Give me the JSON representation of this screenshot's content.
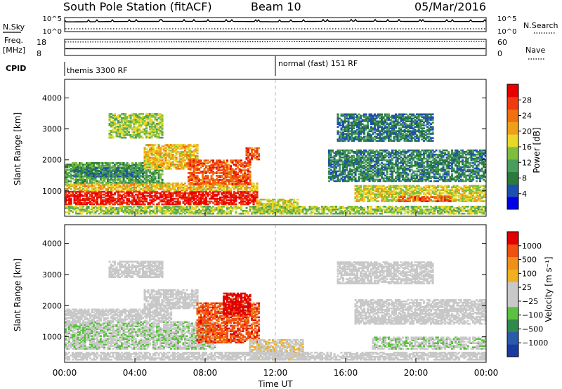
{
  "header": {
    "station": "South Pole Station (fitACF)",
    "beam": "Beam 10",
    "date": "05/Mar/2016"
  },
  "nsky_panel": {
    "left_label": "N.Sky",
    "right_label": "N.Search",
    "ticks_left": [
      "10^5",
      "10^0"
    ],
    "ticks_right": [
      "10^5",
      "10^0"
    ]
  },
  "freq_panel": {
    "left_label_1": "Freq.",
    "left_label_2": "[MHz]",
    "right_label": "Nave",
    "ticks_left": [
      "18",
      "8"
    ],
    "ticks_right": [
      "60",
      "0"
    ]
  },
  "cpid_panel": {
    "label": "CPID",
    "mode1": "themis 3300 RF",
    "mode2": "normal (fast) 151 RF",
    "mode_change_hour": 12
  },
  "power_panel": {
    "ylabel": "Slant Range [km]",
    "yticks": [
      "4000",
      "3000",
      "2000",
      "1000"
    ],
    "colorbar_label": "Power [dB]",
    "colorbar_ticks": [
      "28",
      "24",
      "20",
      "16",
      "12",
      "8",
      "4"
    ],
    "colorbar_colors": [
      "#0000e8",
      "#1e4fb0",
      "#2a7a3c",
      "#4a9e5c",
      "#7cbf3c",
      "#e8d82a",
      "#f0a018",
      "#f07010",
      "#f03a10",
      "#e80000"
    ]
  },
  "velocity_panel": {
    "ylabel": "Slant Range [km]",
    "yticks": [
      "4000",
      "3000",
      "2000",
      "1000"
    ],
    "colorbar_label": "Velocity [m s⁻¹]",
    "colorbar_ticks": [
      "1000",
      "500",
      "100",
      "25",
      "−25",
      "−100",
      "−500",
      "−1000"
    ],
    "colorbar_colors": [
      "#1a3aa0",
      "#2a5aa8",
      "#2e8a4a",
      "#5cc040",
      "#c8c8c8",
      "#c8c8c8",
      "#f0b020",
      "#f09018",
      "#f05010",
      "#e00000"
    ]
  },
  "x_axis": {
    "label": "Time UT",
    "ticks": [
      "00:00",
      "04:00",
      "08:00",
      "12:00",
      "16:00",
      "20:00",
      "00:00"
    ]
  },
  "chart_data": [
    {
      "type": "line",
      "title": "N.Sky / N.Search",
      "x": [
        0,
        4,
        8,
        12,
        16,
        20,
        24
      ],
      "series": [
        {
          "name": "N.Sky",
          "values": [
            5000.0,
            8000.0,
            9000.0,
            6000.0,
            10000.0,
            8000.0,
            7000.0
          ]
        },
        {
          "name": "N.Search",
          "values": [
            1.5,
            1.5,
            1.5,
            1.5,
            1.5,
            1.5,
            1.5
          ]
        }
      ],
      "ylim_log10": [
        0,
        5
      ]
    },
    {
      "type": "line",
      "title": "Freq / Nave",
      "x": [
        0,
        12,
        24
      ],
      "series": [
        {
          "name": "Freq",
          "values": [
            12.2,
            12.2,
            12.2
          ]
        },
        {
          "name": "Nave",
          "values": [
            50,
            52,
            52
          ]
        }
      ],
      "ylim": [
        8,
        18
      ]
    },
    {
      "type": "heatmap",
      "title": "Power",
      "xlim": [
        0,
        24
      ],
      "ylim": [
        180,
        4600
      ],
      "zlim": [
        0,
        30
      ],
      "unit": "dB",
      "regions": [
        {
          "t0": 0.0,
          "t1": 10.9,
          "r0": 550,
          "r1": 1000,
          "v": 28
        },
        {
          "t0": 0.0,
          "t1": 10.9,
          "r0": 1000,
          "r1": 1250,
          "v": 18
        },
        {
          "t0": 0.0,
          "t1": 5.5,
          "r0": 1250,
          "r1": 1900,
          "v": 11
        },
        {
          "t0": 0.5,
          "t1": 4.5,
          "r0": 1450,
          "r1": 1750,
          "v": 8
        },
        {
          "t0": 4.5,
          "t1": 7.5,
          "r0": 1700,
          "r1": 2500,
          "v": 18
        },
        {
          "t0": 7.0,
          "t1": 10.5,
          "r0": 1200,
          "r1": 2000,
          "v": 24
        },
        {
          "t0": 2.5,
          "t1": 5.5,
          "r0": 2700,
          "r1": 3500,
          "v": 14
        },
        {
          "t0": 10.3,
          "t1": 11.0,
          "r0": 2000,
          "r1": 2400,
          "v": 24
        },
        {
          "t0": 10.9,
          "t1": 13.2,
          "r0": 300,
          "r1": 750,
          "v": 16
        },
        {
          "t0": 15.0,
          "t1": 24.0,
          "r0": 1300,
          "r1": 2300,
          "v": 8
        },
        {
          "t0": 16.5,
          "t1": 24.0,
          "r0": 650,
          "r1": 1150,
          "v": 16
        },
        {
          "t0": 19.0,
          "t1": 22.0,
          "r0": 650,
          "r1": 800,
          "v": 24
        },
        {
          "t0": 15.5,
          "t1": 21.0,
          "r0": 2600,
          "r1": 3500,
          "v": 7
        },
        {
          "t0": 0.0,
          "t1": 24.0,
          "r0": 250,
          "r1": 500,
          "v": 14
        }
      ]
    },
    {
      "type": "heatmap",
      "title": "Velocity",
      "xlim": [
        0,
        24
      ],
      "ylim": [
        180,
        4600
      ],
      "zlim": [
        -1000,
        1000
      ],
      "unit": "m/s",
      "regions": [
        {
          "t0": 0.0,
          "t1": 8.5,
          "r0": 600,
          "r1": 1500,
          "v": -150
        },
        {
          "t0": 0.0,
          "t1": 6.0,
          "r0": 1500,
          "r1": 1900,
          "v": 0
        },
        {
          "t0": 4.5,
          "t1": 7.5,
          "r0": 1900,
          "r1": 2500,
          "v": 0
        },
        {
          "t0": 7.5,
          "t1": 11.0,
          "r0": 800,
          "r1": 2100,
          "v": 700
        },
        {
          "t0": 9.0,
          "t1": 10.5,
          "r0": 1700,
          "r1": 2400,
          "v": 900
        },
        {
          "t0": 10.5,
          "t1": 13.5,
          "r0": 250,
          "r1": 900,
          "v": 150
        },
        {
          "t0": 16.5,
          "t1": 24.0,
          "r0": 1400,
          "r1": 2200,
          "v": 0
        },
        {
          "t0": 17.5,
          "t1": 24.0,
          "r0": 600,
          "r1": 1000,
          "v": -150
        },
        {
          "t0": 2.5,
          "t1": 5.5,
          "r0": 2900,
          "r1": 3400,
          "v": 0
        },
        {
          "t0": 15.5,
          "t1": 21.0,
          "r0": 2700,
          "r1": 3400,
          "v": 0
        },
        {
          "t0": 0.0,
          "t1": 24.0,
          "r0": 250,
          "r1": 500,
          "v": 0
        }
      ]
    }
  ]
}
